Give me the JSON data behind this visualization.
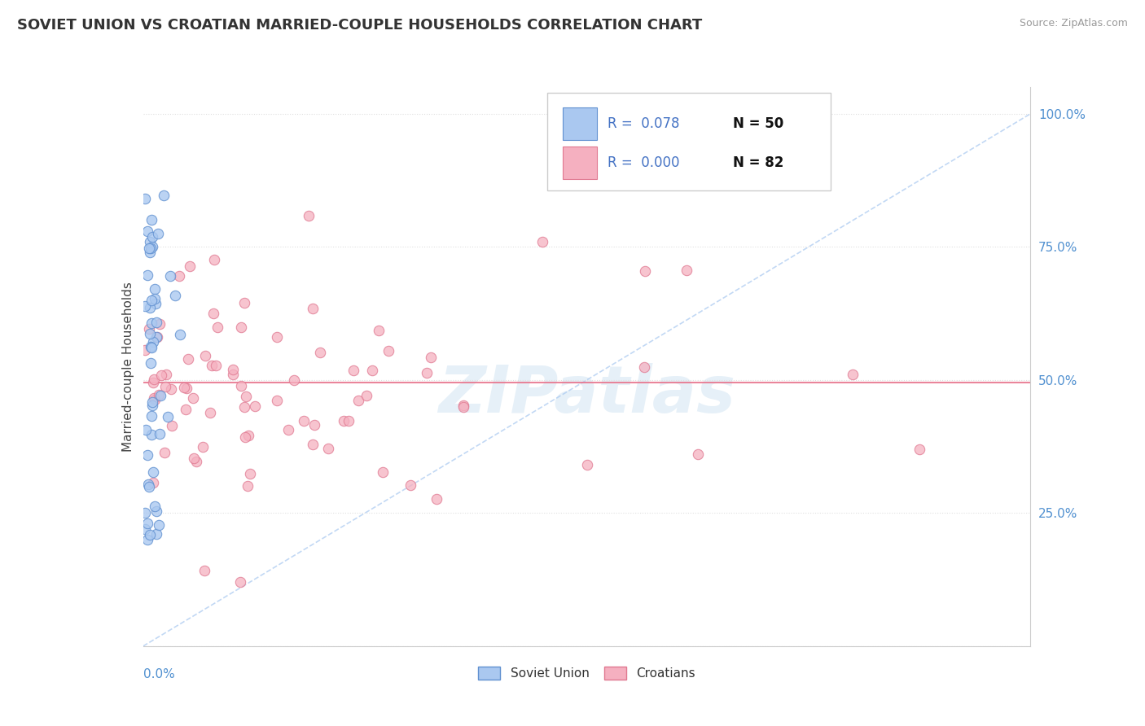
{
  "title": "SOVIET UNION VS CROATIAN MARRIED-COUPLE HOUSEHOLDS CORRELATION CHART",
  "source": "Source: ZipAtlas.com",
  "ylabel": "Married-couple Households",
  "series1_color": "#aac8f0",
  "series2_color": "#f5b0c0",
  "series1_edge": "#6090d0",
  "series2_edge": "#e07890",
  "trend1_color": "#a8c8f0",
  "trend2_color": "#e87890",
  "watermark_color": "#c8dff0",
  "ytick_color": "#5090d0",
  "title_color": "#333333",
  "source_color": "#999999",
  "legend_edge_color": "#cccccc",
  "legend_text_color": "#4472c4",
  "legend_n_color": "#111111",
  "grid_color": "#e0e0e0",
  "xlim": [
    0.0,
    0.4
  ],
  "ylim": [
    0.0,
    1.05
  ],
  "ytick_vals": [
    0.0,
    0.25,
    0.5,
    0.75,
    1.0
  ],
  "ytick_labels": [
    "",
    "25.0%",
    "50.0%",
    "75.0%",
    "100.0%"
  ],
  "horizontal_line_y": 0.495,
  "trend_line_x": [
    0.0,
    0.4
  ],
  "trend_line_y": [
    0.0,
    1.0
  ]
}
